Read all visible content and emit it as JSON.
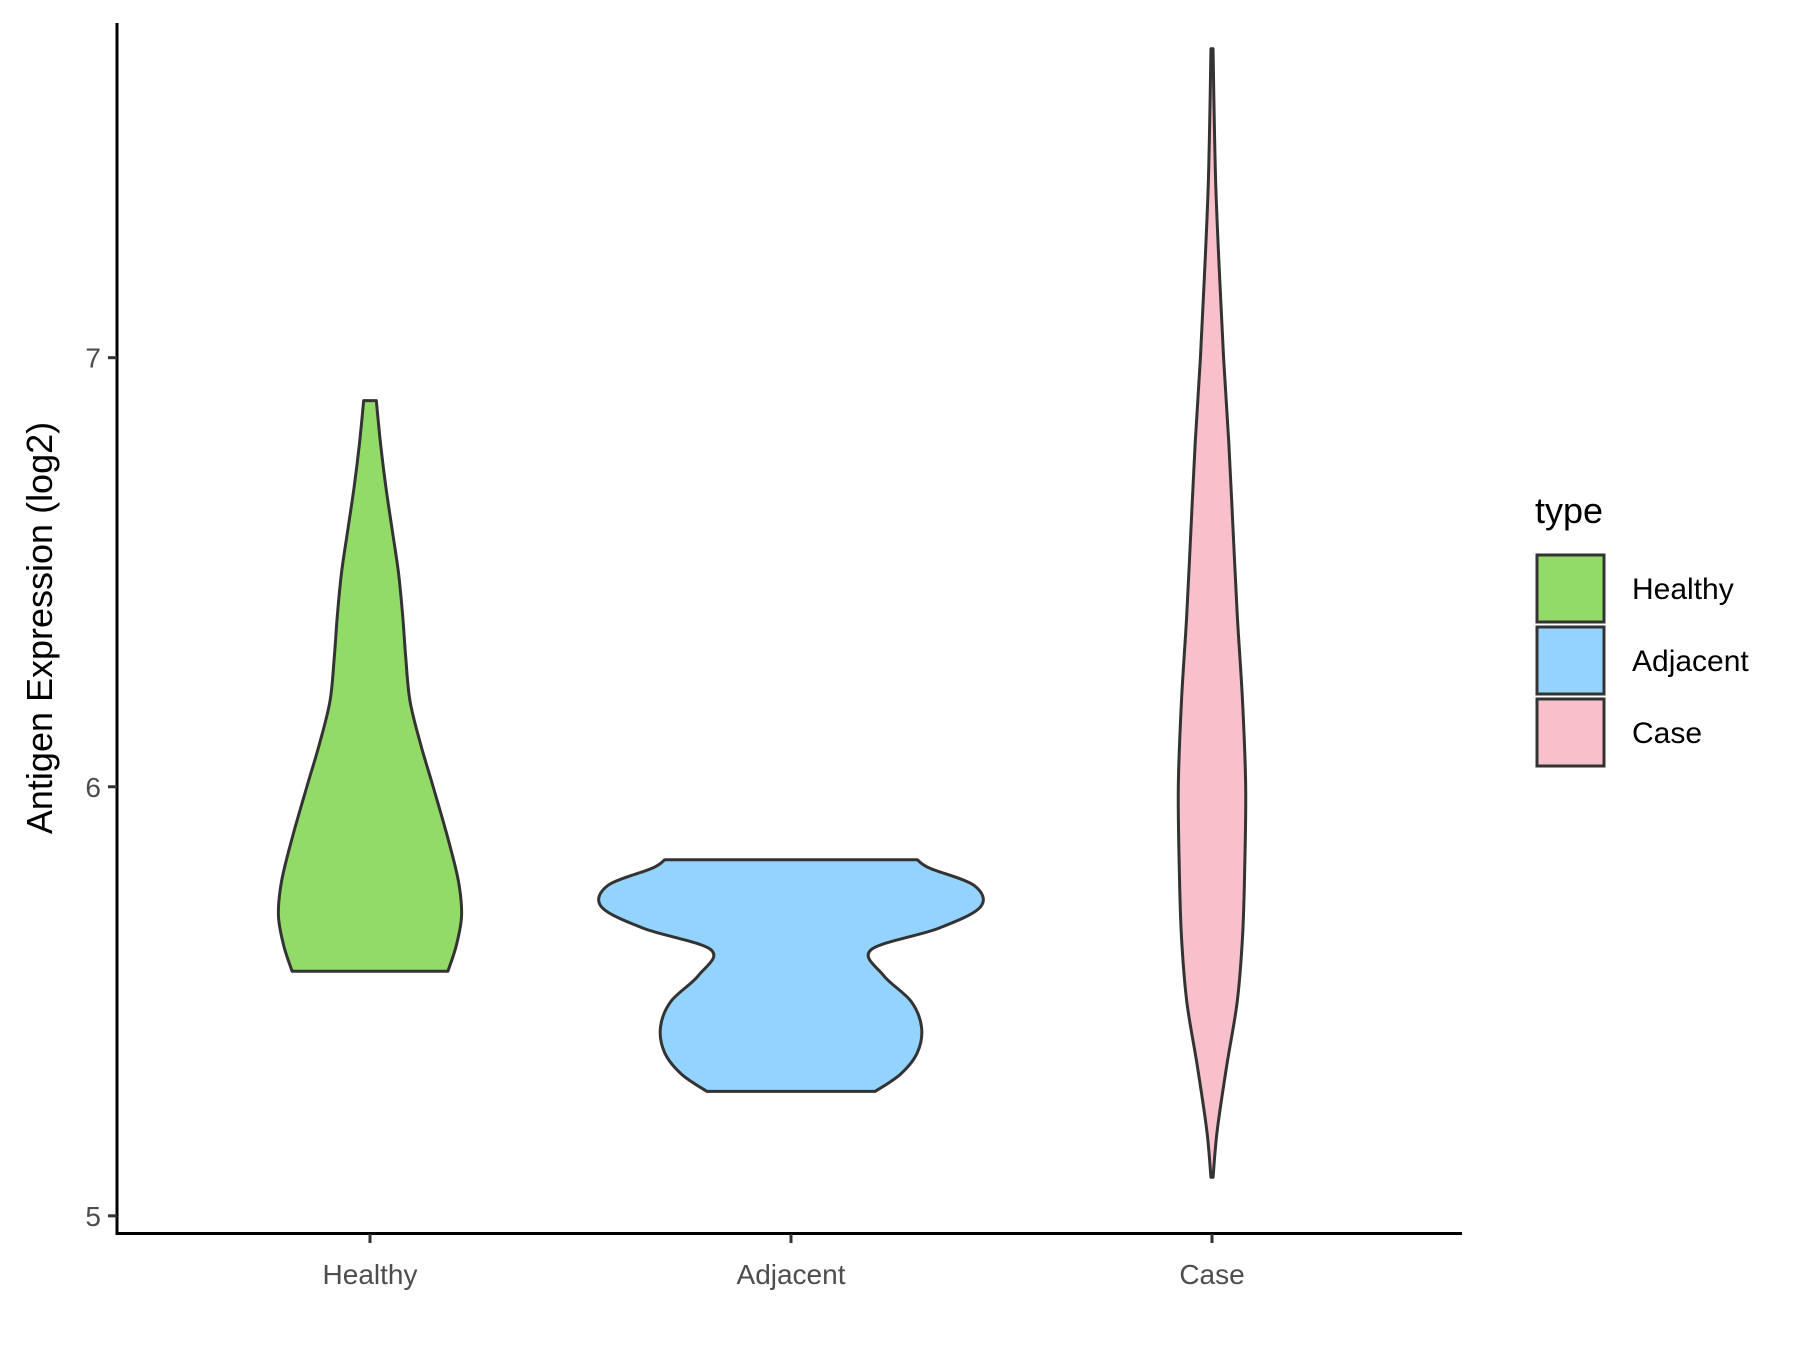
{
  "chart_data": {
    "type": "violin",
    "xlabel": "",
    "ylabel": "Antigen Expression (log2)",
    "ylim": [
      4.96,
      7.78
    ],
    "yticks": [
      5,
      6,
      7
    ],
    "categories": [
      "Healthy",
      "Adjacent",
      "Case"
    ],
    "grid": false,
    "legend": {
      "title": "type",
      "placement": "right",
      "entries": [
        "Healthy",
        "Adjacent",
        "Case"
      ]
    },
    "colors": {
      "Healthy": "#93db69",
      "Adjacent": "#94d3fd",
      "Case": "#f7c0cb",
      "outline": "#333333"
    },
    "series": [
      {
        "name": "Healthy",
        "density_profile": [
          [
            5.57,
            0.37
          ],
          [
            5.63,
            0.41
          ],
          [
            5.7,
            0.435
          ],
          [
            5.78,
            0.42
          ],
          [
            5.88,
            0.37
          ],
          [
            6.0,
            0.3
          ],
          [
            6.1,
            0.24
          ],
          [
            6.2,
            0.19
          ],
          [
            6.3,
            0.17
          ],
          [
            6.4,
            0.155
          ],
          [
            6.5,
            0.135
          ],
          [
            6.6,
            0.105
          ],
          [
            6.7,
            0.075
          ],
          [
            6.8,
            0.05
          ],
          [
            6.9,
            0.03
          ]
        ]
      },
      {
        "name": "Adjacent",
        "density_profile": [
          [
            5.29,
            0.4
          ],
          [
            5.33,
            0.52
          ],
          [
            5.38,
            0.6
          ],
          [
            5.44,
            0.62
          ],
          [
            5.5,
            0.57
          ],
          [
            5.56,
            0.44
          ],
          [
            5.62,
            0.38
          ],
          [
            5.67,
            0.7
          ],
          [
            5.72,
            0.9
          ],
          [
            5.77,
            0.87
          ],
          [
            5.81,
            0.66
          ],
          [
            5.83,
            0.6
          ]
        ]
      },
      {
        "name": "Case",
        "density_profile": [
          [
            5.09,
            0.005
          ],
          [
            5.2,
            0.025
          ],
          [
            5.35,
            0.07
          ],
          [
            5.5,
            0.12
          ],
          [
            5.65,
            0.145
          ],
          [
            5.8,
            0.155
          ],
          [
            6.0,
            0.16
          ],
          [
            6.2,
            0.145
          ],
          [
            6.4,
            0.12
          ],
          [
            6.6,
            0.1
          ],
          [
            6.8,
            0.08
          ],
          [
            7.0,
            0.055
          ],
          [
            7.2,
            0.035
          ],
          [
            7.4,
            0.018
          ],
          [
            7.6,
            0.009
          ],
          [
            7.72,
            0.005
          ]
        ]
      }
    ]
  }
}
